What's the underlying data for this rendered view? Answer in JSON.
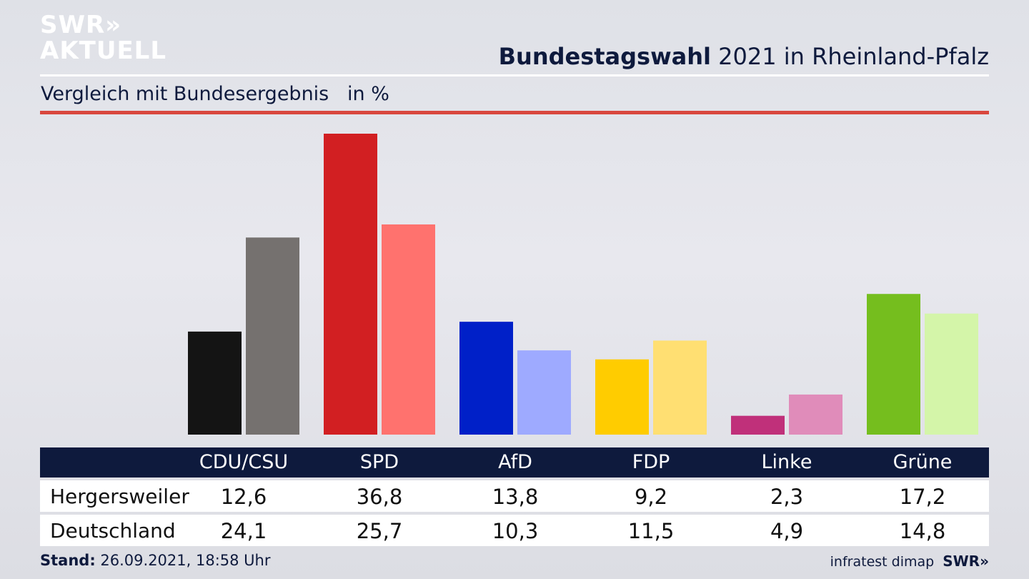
{
  "logo": {
    "line1": "SWR»",
    "line2": "AKTUELL"
  },
  "header": {
    "title_bold": "Bundestagswahl",
    "title_rest": " 2021 in Rheinland-Pfalz"
  },
  "subtitle": "Vergleich mit Bundesergebnis   in %",
  "footer": {
    "stand_label": "Stand:",
    "stand_value": " 26.09.2021, 18:58 Uhr",
    "source": "infratest dimap",
    "brand": "SWR»"
  },
  "table": {
    "row1_label": "Hergersweiler",
    "row2_label": "Deutschland"
  },
  "chart_data": {
    "type": "bar",
    "title": "Bundestagswahl 2021 in Rheinland-Pfalz",
    "subtitle": "Vergleich mit Bundesergebnis   in %",
    "categories": [
      "CDU/CSU",
      "SPD",
      "AfD",
      "FDP",
      "Linke",
      "Grüne"
    ],
    "series": [
      {
        "name": "Hergersweiler",
        "values": [
          12.6,
          36.8,
          13.8,
          9.2,
          2.3,
          17.2
        ],
        "colors": [
          "#141414",
          "#d21f22",
          "#0020c8",
          "#ffcc00",
          "#c0307a",
          "#75be1e"
        ]
      },
      {
        "name": "Deutschland",
        "values": [
          24.1,
          25.7,
          10.3,
          11.5,
          4.9,
          14.8
        ],
        "colors": [
          "#75716f",
          "#ff726e",
          "#9eaaff",
          "#ffdf72",
          "#e08cba",
          "#d4f5a9"
        ]
      }
    ],
    "display_values": [
      [
        "12,6",
        "36,8",
        "13,8",
        "9,2",
        "2,3",
        "17,2"
      ],
      [
        "24,1",
        "25,7",
        "10,3",
        "11,5",
        "4,9",
        "14,8"
      ]
    ],
    "ylim": [
      0,
      36.8
    ],
    "grid": false
  }
}
